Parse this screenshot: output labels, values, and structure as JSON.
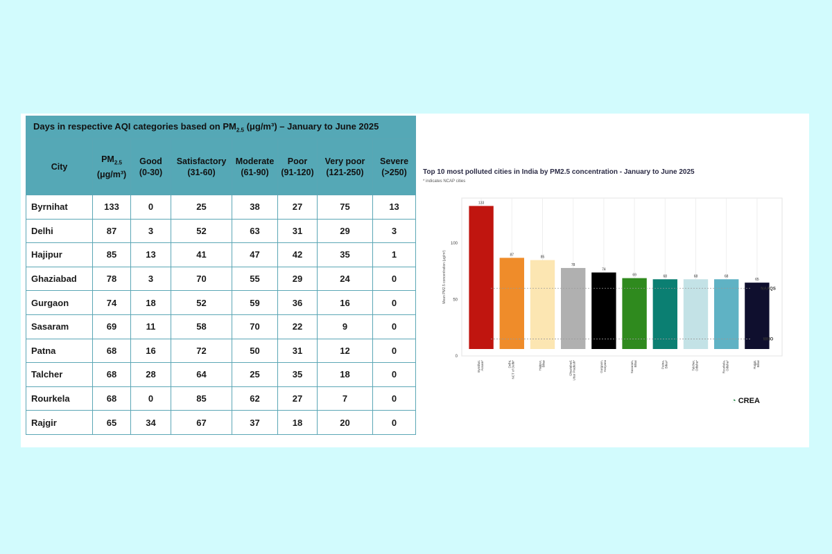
{
  "table": {
    "title_main": "Days in respective AQI categories based on PM",
    "title_sub": "2.5",
    "title_unit": " (μg/m³) – January to June 2025",
    "headers": [
      {
        "line1": "City",
        "line2": ""
      },
      {
        "line1": "PM",
        "sub": "2.5",
        "line2": "(μg/m³)"
      },
      {
        "line1": "Good",
        "line2": "(0-30)"
      },
      {
        "line1": "Satisfactory",
        "line2": "(31-60)"
      },
      {
        "line1": "Moderate",
        "line2": "(61-90)"
      },
      {
        "line1": "Poor",
        "line2": "(91-120)"
      },
      {
        "line1": "Very poor",
        "line2": "(121-250)"
      },
      {
        "line1": "Severe",
        "line2": "(>250)"
      }
    ],
    "rows": [
      [
        "Byrnihat",
        "133",
        "0",
        "25",
        "38",
        "27",
        "75",
        "13"
      ],
      [
        "Delhi",
        "87",
        "3",
        "52",
        "63",
        "31",
        "29",
        "3"
      ],
      [
        "Hajipur",
        "85",
        "13",
        "41",
        "47",
        "42",
        "35",
        "1"
      ],
      [
        "Ghaziabad",
        "78",
        "3",
        "70",
        "55",
        "29",
        "24",
        "0"
      ],
      [
        "Gurgaon",
        "74",
        "18",
        "52",
        "59",
        "36",
        "16",
        "0"
      ],
      [
        "Sasaram",
        "69",
        "11",
        "58",
        "70",
        "22",
        "9",
        "0"
      ],
      [
        "Patna",
        "68",
        "16",
        "72",
        "50",
        "31",
        "12",
        "0"
      ],
      [
        "Talcher",
        "68",
        "28",
        "64",
        "25",
        "35",
        "18",
        "0"
      ],
      [
        "Rourkela",
        "68",
        "0",
        "85",
        "62",
        "27",
        "7",
        "0"
      ],
      [
        "Rajgir",
        "65",
        "34",
        "67",
        "37",
        "18",
        "20",
        "0"
      ]
    ]
  },
  "chart_data": {
    "type": "bar",
    "title": "Top 10 most polluted cities in India by PM2.5 concentration - January to June 2025",
    "note": "* indicates NCAP cities",
    "ylabel": "Mean PM2.5 concentration (μg/m³)",
    "ylim": [
      0,
      140
    ],
    "yticks": [
      0,
      50,
      100
    ],
    "grid": false,
    "categories": [
      "Byrnihat, Assam*",
      "Delhi, NCT of Delhi*",
      "Hajipur, Bihar",
      "Ghaziabad, Uttar Pradesh*",
      "Gurgaon, Haryana",
      "Sasaram, Bihar",
      "Patna, Bihar*",
      "Talcher, Odisha*",
      "Rourkela, Odisha*",
      "Rajgir, Bihar"
    ],
    "values": [
      133,
      87,
      85,
      78,
      74,
      69,
      68,
      68,
      68,
      65
    ],
    "value_labels": [
      "133",
      "87",
      "85",
      "78",
      "74",
      "69",
      "68",
      "68",
      "68",
      "65"
    ],
    "colors": [
      "#c0150f",
      "#ef8c2a",
      "#fce6b2",
      "#b0b0b0",
      "#000000",
      "#2f8a1e",
      "#0b7f72",
      "#c3e2e6",
      "#5fb2c4",
      "#0f0f2e"
    ],
    "reference_lines": [
      {
        "name": "NAAQS",
        "value": 60
      },
      {
        "name": "WHO",
        "value": 15
      }
    ]
  },
  "logo": {
    "text": "CREA"
  }
}
